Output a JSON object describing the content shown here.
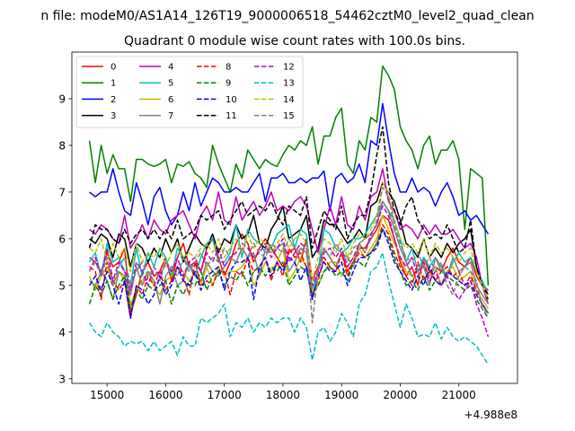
{
  "chart_data": {
    "type": "line",
    "suptitle": "n file: modeM0/AS1A14_126T19_9000006518_54462cztM0_level2_quad_clean",
    "title": "Quadrant 0 module wise count rates with 100.0s bins.",
    "offset_label": "+4.988e8",
    "xlim": [
      14400,
      22000
    ],
    "ylim": [
      2.9,
      10.0
    ],
    "xticks": [
      15000,
      16000,
      17000,
      18000,
      19000,
      20000,
      21000
    ],
    "yticks": [
      3,
      4,
      5,
      6,
      7,
      8,
      9
    ],
    "grid": false,
    "legend_position": "upper left",
    "legend_columns": 4,
    "x_start": 14700,
    "x_step": 100,
    "series": [
      {
        "name": "0",
        "color": "#ff0000",
        "dash": false,
        "values": [
          5.6,
          5.5,
          5.3,
          5.7,
          5.4,
          5.5,
          5.8,
          4.4,
          4.8,
          5.3,
          5.5,
          5.2,
          5.3,
          5.6,
          5.1,
          5.6,
          5.9,
          5.4,
          5.5,
          5.3,
          5.8,
          6.0,
          5.6,
          5.2,
          5.5,
          5.9,
          6.1,
          5.9,
          5.5,
          5.8,
          6.0,
          5.8,
          5.6,
          5.4,
          5.7,
          5.8,
          5.5,
          6.0,
          5.1,
          5.4,
          5.8,
          5.6,
          5.4,
          5.7,
          5.3,
          5.5,
          5.8,
          5.8,
          6.0,
          6.2,
          6.5,
          6.4,
          6.0,
          5.5,
          5.2,
          5.4,
          5.0,
          5.6,
          5.3,
          5.4,
          5.3,
          5.6,
          5.8,
          5.5,
          5.4,
          5.6,
          5.2,
          5.0,
          4.9
        ]
      },
      {
        "name": "1",
        "color": "#008000",
        "dash": false,
        "values": [
          8.1,
          7.2,
          8.0,
          7.4,
          7.8,
          7.5,
          7.5,
          6.8,
          7.7,
          7.7,
          7.6,
          7.55,
          7.6,
          7.7,
          7.2,
          7.6,
          7.55,
          7.65,
          7.4,
          7.3,
          7.1,
          8.0,
          7.6,
          7.3,
          7.0,
          7.6,
          7.3,
          7.9,
          7.7,
          7.5,
          7.7,
          7.6,
          7.55,
          7.8,
          8.0,
          7.9,
          8.1,
          8.0,
          8.4,
          7.6,
          8.2,
          8.2,
          8.6,
          8.8,
          7.6,
          7.4,
          8.1,
          7.9,
          8.6,
          8.5,
          9.7,
          9.5,
          9.2,
          8.4,
          8.1,
          7.9,
          7.5,
          8.0,
          8.2,
          7.6,
          7.9,
          7.9,
          8.1,
          7.7,
          6.2,
          7.5,
          7.4,
          7.3,
          5.0
        ]
      },
      {
        "name": "2",
        "color": "#0000ff",
        "dash": false,
        "values": [
          7.0,
          6.9,
          7.0,
          7.0,
          7.5,
          7.0,
          6.6,
          6.5,
          7.2,
          6.8,
          6.3,
          6.9,
          7.1,
          6.6,
          6.3,
          6.5,
          7.0,
          6.6,
          7.2,
          6.7,
          7.0,
          7.3,
          7.2,
          7.0,
          7.0,
          7.1,
          7.0,
          7.0,
          7.2,
          7.4,
          6.8,
          7.3,
          7.3,
          7.4,
          7.2,
          7.2,
          7.3,
          7.2,
          7.3,
          7.3,
          7.45,
          6.6,
          7.3,
          7.4,
          7.2,
          7.3,
          7.6,
          7.2,
          8.1,
          8.0,
          8.9,
          8.1,
          7.4,
          7.0,
          7.0,
          7.3,
          7.0,
          7.1,
          7.0,
          6.7,
          7.0,
          7.2,
          6.9,
          6.5,
          6.6,
          6.4,
          6.5,
          6.3,
          6.1
        ]
      },
      {
        "name": "3",
        "color": "#000000",
        "dash": false,
        "values": [
          6.0,
          5.9,
          6.1,
          6.0,
          5.6,
          6.1,
          6.0,
          5.4,
          5.9,
          5.8,
          5.5,
          5.8,
          5.6,
          6.0,
          5.7,
          6.0,
          5.5,
          5.8,
          6.1,
          5.9,
          5.8,
          6.1,
          5.7,
          6.0,
          5.9,
          6.3,
          6.0,
          6.1,
          6.5,
          5.9,
          5.8,
          6.2,
          6.4,
          6.7,
          6.0,
          6.1,
          6.2,
          6.5,
          5.6,
          5.8,
          6.4,
          6.3,
          6.3,
          6.1,
          5.9,
          6.0,
          6.2,
          6.0,
          6.7,
          6.8,
          7.2,
          7.0,
          6.8,
          6.4,
          5.9,
          5.8,
          5.6,
          6.0,
          5.6,
          5.8,
          5.6,
          5.9,
          5.7,
          5.9,
          6.0,
          6.2,
          5.4,
          5.0,
          4.7
        ]
      },
      {
        "name": "4",
        "color": "#bf00bf",
        "dash": false,
        "values": [
          6.2,
          6.1,
          6.3,
          6.2,
          6.0,
          5.9,
          6.5,
          5.8,
          6.0,
          6.3,
          6.0,
          6.4,
          6.2,
          6.1,
          6.4,
          6.5,
          6.6,
          6.3,
          6.0,
          6.5,
          6.7,
          6.4,
          7.0,
          6.4,
          6.3,
          6.9,
          6.4,
          6.6,
          6.8,
          6.5,
          6.7,
          7.0,
          6.6,
          6.7,
          6.6,
          6.8,
          6.9,
          6.7,
          6.2,
          5.7,
          6.2,
          6.7,
          6.3,
          6.9,
          6.3,
          6.2,
          6.7,
          6.4,
          6.9,
          7.0,
          7.5,
          6.8,
          6.6,
          6.2,
          6.3,
          6.2,
          6.0,
          6.3,
          6.1,
          6.3,
          6.1,
          6.1,
          6.2,
          6.0,
          5.8,
          5.9,
          5.6,
          5.0,
          4.6
        ]
      },
      {
        "name": "5",
        "color": "#00bfbf",
        "dash": false,
        "values": [
          5.5,
          5.7,
          5.2,
          5.9,
          5.5,
          5.6,
          5.3,
          5.0,
          5.8,
          5.2,
          5.7,
          5.4,
          5.8,
          5.6,
          5.2,
          5.8,
          5.6,
          5.4,
          5.2,
          5.6,
          5.9,
          6.0,
          5.5,
          5.5,
          5.7,
          6.3,
          5.6,
          6.2,
          6.0,
          5.9,
          5.7,
          5.8,
          6.1,
          6.2,
          6.3,
          5.8,
          6.2,
          6.1,
          4.9,
          5.3,
          6.2,
          6.1,
          5.8,
          5.7,
          5.8,
          6.0,
          6.0,
          6.1,
          6.3,
          6.5,
          6.8,
          6.6,
          6.4,
          6.0,
          5.5,
          5.8,
          5.3,
          5.6,
          5.4,
          5.6,
          5.3,
          5.2,
          5.5,
          5.7,
          5.5,
          5.6,
          5.3,
          5.1,
          4.8
        ]
      },
      {
        "name": "6",
        "color": "#bfbf00",
        "dash": false,
        "values": [
          5.2,
          4.9,
          5.2,
          5.4,
          5.0,
          5.3,
          5.1,
          4.6,
          4.9,
          5.1,
          5.3,
          5.0,
          4.8,
          5.1,
          5.2,
          5.4,
          5.3,
          5.1,
          5.3,
          5.0,
          5.4,
          5.0,
          5.4,
          5.2,
          5.3,
          5.3,
          5.4,
          5.6,
          5.0,
          5.2,
          5.5,
          5.3,
          5.5,
          5.8,
          5.1,
          5.3,
          5.6,
          5.4,
          4.9,
          5.0,
          5.3,
          5.5,
          5.5,
          5.2,
          5.4,
          5.6,
          5.8,
          5.6,
          5.8,
          6.0,
          6.5,
          6.2,
          5.9,
          5.6,
          5.3,
          5.2,
          5.1,
          5.5,
          5.2,
          5.4,
          5.0,
          5.3,
          5.4,
          5.1,
          5.2,
          5.3,
          4.9,
          4.7,
          4.5
        ]
      },
      {
        "name": "7",
        "color": "#808080",
        "dash": false,
        "values": [
          5.1,
          5.0,
          5.3,
          5.1,
          4.7,
          5.3,
          5.2,
          4.8,
          5.4,
          5.0,
          5.3,
          5.1,
          4.6,
          5.2,
          5.4,
          5.0,
          5.1,
          5.5,
          5.2,
          5.1,
          5.5,
          5.3,
          5.2,
          5.4,
          5.6,
          5.5,
          5.8,
          5.6,
          5.7,
          5.2,
          5.8,
          5.7,
          5.8,
          5.9,
          5.3,
          5.5,
          5.8,
          5.7,
          4.7,
          5.3,
          5.8,
          5.6,
          5.4,
          5.7,
          5.6,
          5.4,
          5.9,
          6.0,
          6.1,
          6.3,
          6.8,
          6.6,
          6.2,
          5.8,
          5.5,
          5.2,
          5.3,
          5.4,
          5.0,
          5.6,
          5.4,
          5.2,
          5.6,
          5.3,
          5.4,
          5.5,
          5.0,
          4.8,
          4.6
        ]
      },
      {
        "name": "8",
        "color": "#ff0000",
        "dash": true,
        "values": [
          5.4,
          5.3,
          4.7,
          5.5,
          5.1,
          4.9,
          5.1,
          4.3,
          5.0,
          4.8,
          5.2,
          5.0,
          5.3,
          4.9,
          5.1,
          5.4,
          5.2,
          4.8,
          5.5,
          5.0,
          5.1,
          5.0,
          5.3,
          5.3,
          4.8,
          5.3,
          5.2,
          5.6,
          5.3,
          5.4,
          5.6,
          5.1,
          5.5,
          5.2,
          5.8,
          5.6,
          5.7,
          5.4,
          4.8,
          5.1,
          5.6,
          5.4,
          5.3,
          5.7,
          5.2,
          5.5,
          5.7,
          5.6,
          5.7,
          5.9,
          6.3,
          6.1,
          5.7,
          5.4,
          5.2,
          5.0,
          5.5,
          5.1,
          5.3,
          5.1,
          5.3,
          5.4,
          5.2,
          5.3,
          5.0,
          5.2,
          4.9,
          4.6,
          4.4
        ]
      },
      {
        "name": "9",
        "color": "#008000",
        "dash": true,
        "values": [
          4.6,
          5.0,
          4.8,
          5.1,
          4.7,
          5.0,
          5.2,
          4.5,
          4.9,
          4.7,
          5.0,
          4.9,
          5.0,
          5.1,
          4.6,
          5.0,
          4.8,
          5.1,
          5.0,
          5.3,
          4.9,
          5.2,
          5.3,
          5.0,
          5.2,
          5.1,
          5.3,
          5.0,
          5.3,
          5.4,
          5.2,
          5.4,
          5.3,
          5.5,
          5.0,
          5.2,
          5.4,
          5.3,
          4.8,
          5.0,
          5.3,
          5.4,
          5.2,
          5.3,
          5.1,
          5.5,
          5.5,
          5.4,
          5.7,
          5.9,
          6.2,
          6.0,
          5.6,
          5.3,
          5.0,
          5.1,
          4.9,
          5.2,
          4.9,
          5.1,
          5.0,
          5.2,
          5.1,
          5.0,
          4.9,
          5.0,
          4.7,
          4.5,
          4.3
        ]
      },
      {
        "name": "10",
        "color": "#0000ff",
        "dash": true,
        "values": [
          5.0,
          5.2,
          4.9,
          5.3,
          5.0,
          4.6,
          5.1,
          4.3,
          5.0,
          4.9,
          4.6,
          4.8,
          5.2,
          4.8,
          5.0,
          5.4,
          5.1,
          5.0,
          5.3,
          4.9,
          5.2,
          5.3,
          5.4,
          4.9,
          5.3,
          5.5,
          5.5,
          5.6,
          4.7,
          5.4,
          5.6,
          5.2,
          5.5,
          5.3,
          5.6,
          5.5,
          5.1,
          5.4,
          4.7,
          5.2,
          5.5,
          5.3,
          5.3,
          5.5,
          5.0,
          5.3,
          5.6,
          5.6,
          5.7,
          5.8,
          6.2,
          5.9,
          5.5,
          5.3,
          5.1,
          4.9,
          5.2,
          5.0,
          5.4,
          5.1,
          5.0,
          5.3,
          5.2,
          5.1,
          5.0,
          5.1,
          4.8,
          4.6,
          4.4
        ]
      },
      {
        "name": "11",
        "color": "#000000",
        "dash": true,
        "values": [
          5.8,
          6.3,
          6.2,
          6.2,
          6.0,
          5.9,
          6.2,
          5.9,
          6.1,
          6.2,
          6.0,
          6.2,
          6.0,
          6.2,
          6.0,
          6.4,
          6.0,
          6.1,
          6.2,
          6.5,
          6.4,
          6.5,
          6.6,
          6.2,
          6.4,
          6.6,
          6.8,
          6.5,
          6.6,
          6.7,
          6.6,
          6.8,
          6.5,
          6.3,
          6.7,
          6.6,
          6.5,
          6.9,
          5.8,
          6.2,
          6.6,
          6.4,
          6.2,
          6.7,
          6.0,
          6.3,
          6.5,
          6.5,
          7.0,
          7.8,
          8.4,
          7.2,
          6.6,
          6.3,
          6.7,
          6.9,
          6.4,
          6.2,
          6.0,
          6.1,
          6.0,
          6.3,
          6.0,
          5.7,
          5.8,
          6.4,
          5.4,
          5.0,
          4.8
        ]
      },
      {
        "name": "12",
        "color": "#bf00bf",
        "dash": true,
        "values": [
          5.3,
          5.6,
          5.2,
          5.8,
          5.1,
          5.5,
          5.3,
          4.9,
          5.5,
          5.3,
          5.0,
          5.4,
          5.2,
          5.5,
          5.3,
          5.6,
          5.2,
          5.5,
          5.6,
          5.3,
          5.7,
          5.5,
          5.8,
          5.4,
          5.6,
          5.7,
          5.9,
          5.8,
          5.6,
          5.7,
          5.9,
          5.6,
          5.8,
          6.0,
          5.5,
          5.7,
          5.9,
          5.8,
          5.0,
          5.3,
          5.7,
          5.8,
          5.6,
          5.8,
          5.4,
          5.6,
          5.9,
          5.7,
          6.1,
          6.3,
          6.7,
          6.5,
          6.0,
          5.6,
          5.4,
          5.6,
          5.2,
          5.5,
          5.1,
          5.3,
          5.0,
          5.2,
          4.9,
          4.7,
          4.9,
          5.1,
          4.6,
          4.3,
          3.9
        ]
      },
      {
        "name": "13",
        "color": "#00bfbf",
        "dash": true,
        "values": [
          4.2,
          4.0,
          3.9,
          4.2,
          4.0,
          3.9,
          3.7,
          3.8,
          3.75,
          3.8,
          3.6,
          3.8,
          3.6,
          3.7,
          3.8,
          3.5,
          3.9,
          3.7,
          3.7,
          4.3,
          4.2,
          4.3,
          4.4,
          4.6,
          3.9,
          4.2,
          4.1,
          4.3,
          4.0,
          4.2,
          4.1,
          4.3,
          4.2,
          4.3,
          4.3,
          4.0,
          4.3,
          4.1,
          3.4,
          4.0,
          4.1,
          3.8,
          4.0,
          4.4,
          4.2,
          3.9,
          4.6,
          4.8,
          5.3,
          5.4,
          5.7,
          5.1,
          4.6,
          4.1,
          4.6,
          4.3,
          3.9,
          3.95,
          3.9,
          4.2,
          3.85,
          4.1,
          3.9,
          3.8,
          3.9,
          3.8,
          3.7,
          3.5,
          3.3
        ]
      },
      {
        "name": "14",
        "color": "#bfbf00",
        "dash": true,
        "values": [
          5.8,
          5.7,
          6.0,
          5.5,
          5.9,
          5.6,
          5.8,
          5.3,
          5.9,
          5.5,
          5.7,
          5.6,
          5.8,
          5.4,
          5.7,
          5.9,
          5.6,
          5.7,
          5.6,
          5.8,
          5.9,
          5.7,
          6.0,
          5.6,
          5.8,
          6.0,
          5.7,
          6.1,
          5.8,
          6.0,
          5.9,
          5.7,
          5.9,
          6.1,
          5.8,
          6.0,
          6.1,
          5.9,
          5.1,
          5.6,
          6.0,
          5.9,
          5.7,
          6.0,
          5.6,
          5.9,
          6.1,
          6.0,
          6.2,
          6.5,
          7.2,
          7.0,
          6.4,
          6.0,
          5.8,
          5.9,
          5.7,
          6.0,
          5.6,
          5.9,
          5.7,
          5.8,
          5.6,
          5.5,
          5.7,
          5.8,
          5.3,
          5.0,
          4.7
        ]
      },
      {
        "name": "15",
        "color": "#808080",
        "dash": true,
        "values": [
          5.3,
          5.5,
          5.2,
          5.6,
          5.0,
          5.4,
          5.6,
          5.0,
          5.3,
          5.5,
          5.2,
          5.4,
          5.1,
          5.5,
          5.4,
          5.2,
          5.6,
          5.3,
          5.5,
          5.7,
          5.4,
          5.6,
          5.5,
          5.8,
          5.6,
          5.5,
          5.8,
          5.6,
          5.9,
          5.7,
          5.6,
          5.9,
          5.8,
          5.7,
          6.0,
          5.8,
          5.7,
          5.9,
          4.2,
          5.3,
          5.8,
          5.6,
          5.9,
          5.7,
          5.5,
          5.8,
          5.9,
          5.7,
          6.0,
          6.4,
          7.1,
          6.9,
          6.3,
          5.9,
          5.6,
          5.5,
          5.7,
          5.4,
          5.6,
          5.3,
          5.5,
          5.0,
          4.8,
          5.2,
          5.4,
          5.3,
          5.1,
          4.5,
          4.4
        ]
      }
    ]
  }
}
